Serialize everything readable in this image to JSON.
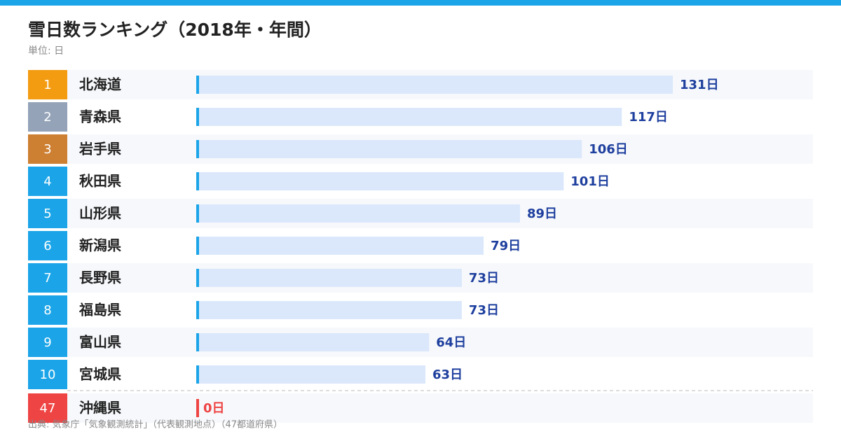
{
  "chart_data": {
    "type": "bar",
    "orientation": "horizontal",
    "title": "雪日数ランキング（2018年・年間）",
    "subtitle": "単位: 日",
    "source": "出典: 気象庁「気象観測統計」（代表観測地点）（47都道府県）",
    "ranks": [
      1,
      2,
      3,
      4,
      5,
      6,
      7,
      8,
      9,
      10,
      47
    ],
    "categories": [
      "北海道",
      "青森県",
      "岩手県",
      "秋田県",
      "山形県",
      "新潟県",
      "長野県",
      "福島県",
      "富山県",
      "宮城県",
      "沖縄県"
    ],
    "values": [
      131,
      117,
      106,
      101,
      89,
      79,
      73,
      73,
      64,
      63,
      0
    ],
    "value_labels": [
      "131日",
      "117日",
      "106日",
      "101日",
      "89日",
      "79日",
      "73日",
      "73日",
      "64日",
      "63日",
      "0日"
    ],
    "rank_colors": [
      "#f39c12",
      "#94a3b8",
      "#cd7f32",
      "#1ba5e8",
      "#1ba5e8",
      "#1ba5e8",
      "#1ba5e8",
      "#1ba5e8",
      "#1ba5e8",
      "#1ba5e8",
      "#ef4444"
    ],
    "color": "#dbe8fb",
    "accent_color": "#1ba5e8",
    "label_color": "#1e3f9e"
  }
}
